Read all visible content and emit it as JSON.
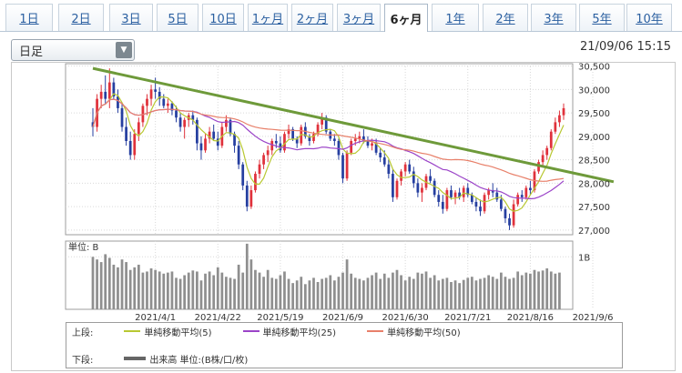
{
  "tabs": [
    {
      "label": "1日",
      "active": false
    },
    {
      "label": "2日",
      "active": false
    },
    {
      "label": "3日",
      "active": false
    },
    {
      "label": "5日",
      "active": false
    },
    {
      "label": "10日",
      "active": false
    },
    {
      "label": "1ヶ月",
      "active": false
    },
    {
      "label": "2ヶ月",
      "active": false
    },
    {
      "label": "3ヶ月",
      "active": false
    },
    {
      "label": "6ヶ月",
      "active": true
    },
    {
      "label": "1年",
      "active": false
    },
    {
      "label": "2年",
      "active": false
    },
    {
      "label": "3年",
      "active": false
    },
    {
      "label": "5年",
      "active": false
    },
    {
      "label": "10年",
      "active": false
    }
  ],
  "toolbar": {
    "interval_select": "日足",
    "timestamp": "21/09/06 15:15"
  },
  "legend": {
    "upper_label": "上段:",
    "lower_label": "下段:",
    "ma5": "単純移動平均(5)",
    "ma25": "単純移動平均(25)",
    "ma50": "単純移動平均(50)",
    "volume": "出来高 単位:(B株/口/枚)"
  },
  "colors": {
    "up": "#e0323c",
    "down": "#263fa0",
    "ma5": "#b8c832",
    "ma25": "#9b44c8",
    "ma50": "#e8806a",
    "trendline": "#6e9a3a",
    "volume": "#8f8f8f"
  },
  "chart_data": [
    {
      "type": "candlestick",
      "title": "",
      "y_ticks": [
        "30,500",
        "30,000",
        "29,500",
        "29,000",
        "28,500",
        "28,000",
        "27,500",
        "27,000"
      ],
      "ylim": [
        26900,
        30550
      ],
      "x_ticks": [
        "2021/4/1",
        "2021/4/22",
        "2021/5/19",
        "2021/6/9",
        "2021/6/30",
        "2021/7/21",
        "2021/8/16",
        "2021/9/6"
      ],
      "x_tick_index": [
        15,
        30,
        45,
        60,
        75,
        90,
        105,
        120
      ],
      "series_names": [
        "単純移動平均(5)",
        "単純移動平均(25)",
        "単純移動平均(50)"
      ],
      "trendline": {
        "from": [
          0,
          30450
        ],
        "to": [
          125,
          28030
        ]
      },
      "ohlc": [
        [
          29300,
          29600,
          29000,
          29200
        ],
        [
          29200,
          29900,
          29100,
          29800
        ],
        [
          29800,
          30100,
          29600,
          29950
        ],
        [
          29950,
          30300,
          29700,
          29800
        ],
        [
          29800,
          30450,
          29600,
          30150
        ],
        [
          30150,
          30250,
          29800,
          29850
        ],
        [
          29850,
          30000,
          29500,
          29600
        ],
        [
          29600,
          29700,
          29100,
          29200
        ],
        [
          29200,
          29400,
          28800,
          28900
        ],
        [
          28900,
          29100,
          28500,
          28600
        ],
        [
          28600,
          29150,
          28500,
          29050
        ],
        [
          29050,
          29400,
          28900,
          29300
        ],
        [
          29300,
          29700,
          29200,
          29650
        ],
        [
          29650,
          29900,
          29450,
          29800
        ],
        [
          29800,
          30100,
          29650,
          30000
        ],
        [
          30000,
          30250,
          29800,
          29950
        ],
        [
          29950,
          30050,
          29650,
          29800
        ],
        [
          29800,
          29900,
          29600,
          29650
        ],
        [
          29650,
          29800,
          29500,
          29700
        ],
        [
          29700,
          29750,
          29450,
          29550
        ],
        [
          29550,
          29650,
          29300,
          29400
        ],
        [
          29400,
          29500,
          29100,
          29200
        ],
        [
          29200,
          29400,
          28950,
          29350
        ],
        [
          29350,
          29500,
          29200,
          29450
        ],
        [
          29450,
          29550,
          29250,
          29350
        ],
        [
          29350,
          29400,
          28700,
          28850
        ],
        [
          28850,
          29000,
          28500,
          28700
        ],
        [
          28700,
          29050,
          28650,
          28950
        ],
        [
          28950,
          29200,
          28850,
          29100
        ],
        [
          29100,
          29250,
          28900,
          28950
        ],
        [
          28950,
          29100,
          28700,
          28800
        ],
        [
          28800,
          29300,
          28750,
          29200
        ],
        [
          29200,
          29450,
          29100,
          29350
        ],
        [
          29350,
          29400,
          29000,
          29050
        ],
        [
          29050,
          29100,
          28650,
          28800
        ],
        [
          28800,
          28900,
          28300,
          28400
        ],
        [
          28400,
          28450,
          27850,
          27950
        ],
        [
          27950,
          28050,
          27400,
          27500
        ],
        [
          27500,
          27950,
          27450,
          27850
        ],
        [
          27850,
          28250,
          27800,
          28200
        ],
        [
          28200,
          28500,
          28100,
          28400
        ],
        [
          28400,
          28650,
          28300,
          28600
        ],
        [
          28600,
          28800,
          28450,
          28700
        ],
        [
          28700,
          28950,
          28600,
          28900
        ],
        [
          28900,
          29050,
          28750,
          28850
        ],
        [
          28850,
          29000,
          28650,
          28700
        ],
        [
          28700,
          29100,
          28650,
          29050
        ],
        [
          29050,
          29250,
          28950,
          29150
        ],
        [
          29150,
          29200,
          28900,
          28950
        ],
        [
          28950,
          29000,
          28750,
          28850
        ],
        [
          28850,
          29250,
          28800,
          29200
        ],
        [
          29200,
          29300,
          28950,
          29000
        ],
        [
          29000,
          29050,
          28800,
          28900
        ],
        [
          28900,
          29100,
          28850,
          29050
        ],
        [
          29050,
          29300,
          29000,
          29250
        ],
        [
          29250,
          29500,
          29150,
          29400
        ],
        [
          29400,
          29450,
          29050,
          29100
        ],
        [
          29100,
          29150,
          28900,
          28950
        ],
        [
          28950,
          29050,
          28800,
          28900
        ],
        [
          28900,
          28950,
          28500,
          28600
        ],
        [
          28600,
          28650,
          28000,
          28100
        ],
        [
          28100,
          28700,
          28050,
          28650
        ],
        [
          28650,
          28950,
          28600,
          28900
        ],
        [
          28900,
          29050,
          28800,
          28950
        ],
        [
          28950,
          29100,
          28850,
          29000
        ],
        [
          29000,
          29150,
          28850,
          28900
        ],
        [
          28900,
          29000,
          28750,
          28800
        ],
        [
          28800,
          28950,
          28700,
          28850
        ],
        [
          28850,
          28950,
          28600,
          28650
        ],
        [
          28650,
          28750,
          28450,
          28550
        ],
        [
          28550,
          28700,
          28350,
          28400
        ],
        [
          28400,
          28500,
          28100,
          28200
        ],
        [
          28200,
          28300,
          27600,
          27700
        ],
        [
          27700,
          28100,
          27650,
          28050
        ],
        [
          28050,
          28300,
          27950,
          28250
        ],
        [
          28250,
          28450,
          28150,
          28400
        ],
        [
          28400,
          28500,
          28200,
          28250
        ],
        [
          28250,
          28350,
          27900,
          28000
        ],
        [
          28000,
          28100,
          27700,
          27800
        ],
        [
          27800,
          28000,
          27600,
          27900
        ],
        [
          27900,
          28200,
          27850,
          28150
        ],
        [
          28150,
          28300,
          28000,
          28050
        ],
        [
          28050,
          28100,
          27700,
          27750
        ],
        [
          27750,
          27850,
          27500,
          27600
        ],
        [
          27600,
          27750,
          27350,
          27450
        ],
        [
          27450,
          27900,
          27400,
          27850
        ],
        [
          27850,
          27950,
          27650,
          27700
        ],
        [
          27700,
          27850,
          27550,
          27800
        ],
        [
          27800,
          27900,
          27650,
          27700
        ],
        [
          27700,
          27950,
          27600,
          27900
        ],
        [
          27900,
          28000,
          27700,
          27750
        ],
        [
          27750,
          27800,
          27550,
          27600
        ],
        [
          27600,
          27700,
          27400,
          27500
        ],
        [
          27500,
          27650,
          27300,
          27400
        ],
        [
          27400,
          27800,
          27350,
          27750
        ],
        [
          27750,
          27900,
          27650,
          27850
        ],
        [
          27850,
          28000,
          27700,
          27800
        ],
        [
          27800,
          27900,
          27600,
          27650
        ],
        [
          27650,
          27750,
          27400,
          27450
        ],
        [
          27450,
          27500,
          27150,
          27250
        ],
        [
          27250,
          27350,
          27000,
          27100
        ],
        [
          27100,
          27650,
          27050,
          27550
        ],
        [
          27550,
          27800,
          27500,
          27750
        ],
        [
          27750,
          27850,
          27600,
          27700
        ],
        [
          27700,
          27950,
          27650,
          27900
        ],
        [
          27900,
          28050,
          27750,
          27850
        ],
        [
          27850,
          28300,
          27800,
          28250
        ],
        [
          28250,
          28500,
          28200,
          28450
        ],
        [
          28450,
          28700,
          28350,
          28600
        ],
        [
          28600,
          28800,
          28500,
          28750
        ],
        [
          28750,
          29150,
          28700,
          29100
        ],
        [
          29100,
          29400,
          29050,
          29300
        ],
        [
          29300,
          29550,
          29200,
          29450
        ],
        [
          29450,
          29700,
          29350,
          29600
        ]
      ],
      "volume": [
        1.0,
        0.95,
        0.9,
        1.05,
        0.98,
        0.85,
        0.8,
        0.95,
        0.9,
        0.75,
        0.8,
        0.85,
        0.7,
        0.72,
        0.78,
        0.75,
        0.72,
        0.68,
        0.7,
        0.72,
        0.6,
        0.58,
        0.65,
        0.7,
        0.74,
        0.72,
        0.55,
        0.68,
        0.72,
        0.65,
        0.8,
        0.7,
        0.62,
        0.6,
        0.58,
        0.85,
        0.7,
        1.25,
        0.95,
        0.75,
        0.7,
        0.62,
        0.75,
        0.6,
        0.58,
        0.65,
        0.72,
        0.58,
        0.5,
        0.55,
        0.62,
        0.48,
        0.55,
        0.6,
        0.52,
        0.58,
        0.6,
        0.65,
        0.55,
        0.62,
        0.7,
        0.95,
        0.68,
        0.6,
        0.58,
        0.55,
        0.6,
        0.65,
        0.7,
        0.58,
        0.68,
        0.6,
        0.7,
        0.75,
        0.65,
        0.55,
        0.62,
        0.58,
        0.7,
        0.68,
        0.72,
        0.6,
        0.65,
        0.55,
        0.58,
        0.6,
        0.52,
        0.55,
        0.5,
        0.56,
        0.6,
        0.62,
        0.55,
        0.58,
        0.6,
        0.65,
        0.62,
        0.58,
        0.7,
        0.62,
        0.58,
        0.6,
        0.72,
        0.65,
        0.7,
        0.68,
        0.75,
        0.72,
        0.74,
        0.78,
        0.72,
        0.68,
        0.7
      ],
      "volume_label": "1B",
      "volume_unit": "単位: B"
    }
  ]
}
